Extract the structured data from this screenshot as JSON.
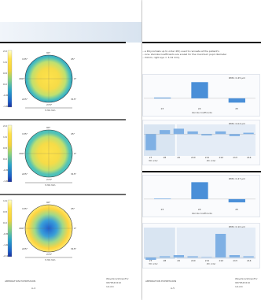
{
  "left_page": {
    "maps": [
      {
        "scale_labels": [
          "2.0",
          "1.6",
          "0.8",
          "0.0",
          "-0.8",
          "-1.6"
        ],
        "angles": {
          "top": "90°",
          "left": "180°",
          "right": "0°",
          "tl": "135°",
          "tr": "45°",
          "bl": "225°",
          "br": "315°",
          "bottom": "270°"
        },
        "diameter": "3.34 mm",
        "center_color": "#ffe14a",
        "edge_color": "#2aa5c9"
      },
      {
        "scale_labels": [
          "2.0",
          "1.6",
          "0.8",
          "0.0",
          "-0.8",
          "-1.6"
        ],
        "angles": {
          "top": "90°",
          "left": "180°",
          "right": "0°",
          "tl": "135°",
          "tr": "45°",
          "bl": "225°",
          "br": "315°",
          "bottom": "270°"
        },
        "diameter": "3.34 mm",
        "center_color": "#ffe24a",
        "edge_color": "#44c0c0"
      },
      {
        "scale_labels": [
          "1.6",
          "0.8",
          "0.0",
          "-0.8",
          "-1.6",
          "-2.4"
        ],
        "angles": {
          "top": "90°",
          "left": "180°",
          "right": "0°",
          "tl": "135°",
          "tr": "45°",
          "bl": "225°",
          "br": "315°",
          "bottom": "270°"
        },
        "diameter": "3.34 mm",
        "center_color": "#1e6fd6",
        "edge_color": "#ffd540"
      }
    ],
    "footer": {
      "left": "ABERRATION EXPRESSION",
      "page": "A-4",
      "right_line1": "WaveScanDownFor",
      "right_line2": "9876543210",
      "right_line3": "1/1/14"
    }
  },
  "right_page": {
    "intro_line1": "…a Polynomials up to order 4th) used to recreate at the patient's",
    "intro_line2": "…ions. Zernike Coefficients are scaled for the maximum pupil diameter",
    "intro_line3": "…34mm, right eye = 3.34 mm).",
    "charts": [
      {
        "rms": "RMS: 0.45 µm",
        "categories": [
          "z3",
          "z4",
          "z5"
        ],
        "values": [
          0.02,
          0.45,
          -0.12
        ],
        "xlabel": "Zernike Coefficients",
        "ylim": [
          -0.2,
          0.5
        ],
        "bar_color": "#4a8fd8"
      },
      {
        "rms": "RMS: 0.04 µm",
        "categories": [
          "z7",
          "z8",
          "z9",
          "z10",
          "z11",
          "z12",
          "z13",
          "z14"
        ],
        "values": [
          -0.12,
          0.03,
          0.04,
          0.02,
          -0.01,
          0.02,
          -0.015,
          0.01
        ],
        "group_labels": [
          "3th order",
          "4th order"
        ],
        "ylim": [
          -0.15,
          0.06
        ],
        "bar_color": "#7fb0e4"
      },
      {
        "rms": "RMS: 0.47 µm",
        "categories": [
          "z3",
          "z4",
          "z5"
        ],
        "values": [
          0.01,
          0.47,
          -0.09
        ],
        "xlabel": "Zernike Coefficients",
        "ylim": [
          -0.2,
          0.5
        ],
        "bar_color": "#4a8fd8"
      },
      {
        "rms": "RMS: 0.10 µm",
        "categories": [
          "z7",
          "z8",
          "z9",
          "z10",
          "z11",
          "z12",
          "z13",
          "z14"
        ],
        "values": [
          -0.01,
          0.005,
          0.01,
          0.005,
          0.002,
          0.1,
          0.01,
          0.005
        ],
        "group_labels": [
          "3th order",
          "4th order"
        ],
        "ylim": [
          0,
          0.12
        ],
        "bar_color": "#7fb0e4"
      }
    ],
    "footer": {
      "left": "ABERRATION EXPRESSION",
      "page": "A-5",
      "right_line1": "WaveScanDownFor",
      "right_line2": "9876543210",
      "right_line3": "1/1/14"
    }
  }
}
